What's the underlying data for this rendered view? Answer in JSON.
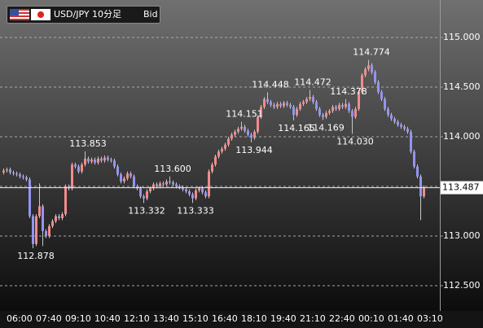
{
  "chart_data": {
    "type": "candlestick",
    "title": "USD/JPY 10分足",
    "price_type": "Bid",
    "categories": [
      null,
      null,
      "06:00",
      null,
      null,
      null,
      null,
      null,
      null,
      null,
      null,
      "07:40",
      null,
      null,
      null,
      null,
      null,
      null,
      null,
      null,
      "09:10",
      null,
      null,
      null,
      null,
      null,
      null,
      null,
      null,
      "10:40",
      null,
      null,
      null,
      null,
      null,
      null,
      null,
      null,
      "12:10",
      null,
      null,
      null,
      null,
      null,
      null,
      null,
      null,
      "13:40",
      null,
      null,
      null,
      null,
      null,
      null,
      null,
      null,
      "15:10",
      null,
      null,
      null,
      null,
      null,
      null,
      null,
      null,
      "16:40",
      null,
      null,
      null,
      null,
      null,
      null,
      null,
      null,
      "18:10",
      null,
      null,
      null,
      null,
      null,
      null,
      null,
      null,
      "19:40",
      null,
      null,
      null,
      null,
      null,
      null,
      null,
      null,
      "21:10",
      null,
      null,
      null,
      null,
      null,
      null,
      null,
      null,
      "22:40",
      null,
      null,
      null,
      null,
      null,
      null,
      null,
      null,
      "00:10",
      null,
      null,
      null,
      null,
      null,
      null,
      null,
      null,
      "01:40",
      null,
      null,
      null,
      null,
      null,
      null,
      null,
      null,
      "03:10",
      null
    ],
    "open": [
      113.64,
      113.66,
      113.67,
      113.64,
      113.63,
      113.62,
      113.6,
      113.59,
      113.57,
      113.2,
      112.92,
      113.2,
      113.3,
      113.05,
      113.0,
      113.1,
      113.15,
      113.2,
      113.18,
      113.22,
      113.5,
      113.48,
      113.72,
      113.7,
      113.65,
      113.72,
      113.78,
      113.75,
      113.77,
      113.74,
      113.78,
      113.76,
      113.79,
      113.77,
      113.76,
      113.7,
      113.62,
      113.55,
      113.58,
      113.63,
      113.6,
      113.5,
      113.48,
      113.4,
      113.38,
      113.45,
      113.48,
      113.52,
      113.5,
      113.53,
      113.52,
      113.55,
      113.54,
      113.52,
      113.5,
      113.49,
      113.47,
      113.45,
      113.42,
      113.38,
      113.46,
      113.48,
      113.44,
      113.4,
      113.65,
      113.72,
      113.8,
      113.85,
      113.88,
      113.92,
      113.98,
      114.02,
      114.05,
      114.08,
      114.1,
      114.06,
      114.02,
      113.99,
      114.05,
      114.2,
      114.3,
      114.38,
      114.35,
      114.32,
      114.3,
      114.33,
      114.31,
      114.34,
      114.32,
      114.3,
      114.22,
      114.28,
      114.33,
      114.35,
      114.38,
      114.4,
      114.35,
      114.28,
      114.22,
      114.2,
      114.24,
      114.26,
      114.3,
      114.28,
      114.32,
      114.3,
      114.33,
      114.26,
      114.2,
      114.28,
      114.45,
      114.62,
      114.68,
      114.72,
      114.65,
      114.55,
      114.45,
      114.38,
      114.28,
      114.22,
      114.18,
      114.15,
      114.12,
      114.1,
      114.08,
      114.05,
      113.85,
      113.7,
      113.6,
      113.4
    ],
    "high": [
      113.68,
      113.69,
      113.69,
      113.66,
      113.65,
      113.64,
      113.62,
      113.61,
      113.59,
      113.22,
      113.22,
      113.53,
      113.32,
      113.07,
      113.12,
      113.17,
      113.22,
      113.22,
      113.24,
      113.52,
      113.52,
      113.74,
      113.74,
      113.72,
      113.74,
      113.853,
      113.8,
      113.79,
      113.79,
      113.8,
      113.8,
      113.81,
      113.81,
      113.79,
      113.78,
      113.72,
      113.64,
      113.6,
      113.65,
      113.65,
      113.62,
      113.52,
      113.5,
      113.42,
      113.47,
      113.5,
      113.54,
      113.54,
      113.55,
      113.55,
      113.57,
      113.6,
      113.56,
      113.54,
      113.52,
      113.51,
      113.49,
      113.47,
      113.44,
      113.48,
      113.5,
      113.5,
      113.46,
      113.67,
      113.74,
      113.82,
      113.87,
      113.9,
      113.94,
      114.0,
      114.04,
      114.07,
      114.1,
      114.151,
      114.12,
      114.08,
      114.04,
      114.07,
      114.22,
      114.32,
      114.4,
      114.448,
      114.37,
      114.34,
      114.35,
      114.35,
      114.36,
      114.36,
      114.34,
      114.32,
      114.3,
      114.35,
      114.37,
      114.4,
      114.472,
      114.42,
      114.37,
      114.3,
      114.24,
      114.26,
      114.28,
      114.32,
      114.32,
      114.34,
      114.34,
      114.378,
      114.35,
      114.28,
      114.3,
      114.47,
      114.64,
      114.7,
      114.774,
      114.74,
      114.67,
      114.57,
      114.47,
      114.4,
      114.3,
      114.24,
      114.2,
      114.17,
      114.14,
      114.12,
      114.1,
      114.07,
      113.87,
      113.72,
      113.62,
      113.51
    ],
    "low": [
      113.62,
      113.64,
      113.62,
      113.61,
      113.6,
      113.58,
      113.57,
      113.55,
      113.18,
      112.878,
      112.9,
      113.18,
      112.9,
      112.98,
      112.98,
      113.08,
      113.13,
      113.16,
      113.16,
      113.2,
      113.46,
      113.46,
      113.68,
      113.63,
      113.63,
      113.7,
      113.73,
      113.73,
      113.72,
      113.72,
      113.74,
      113.74,
      113.75,
      113.74,
      113.68,
      113.6,
      113.53,
      113.53,
      113.56,
      113.58,
      113.48,
      113.46,
      113.38,
      113.332,
      113.36,
      113.43,
      113.46,
      113.48,
      113.48,
      113.5,
      113.5,
      113.52,
      113.5,
      113.48,
      113.47,
      113.45,
      113.43,
      113.4,
      113.333,
      113.36,
      113.44,
      113.42,
      113.38,
      113.38,
      113.63,
      113.7,
      113.78,
      113.83,
      113.86,
      113.9,
      113.96,
      114.0,
      114.03,
      114.06,
      114.04,
      114.0,
      113.944,
      113.97,
      114.03,
      114.18,
      114.28,
      114.33,
      114.3,
      114.28,
      114.28,
      114.29,
      114.29,
      114.3,
      114.28,
      114.165,
      114.2,
      114.26,
      114.31,
      114.33,
      114.36,
      114.33,
      114.26,
      114.2,
      114.169,
      114.18,
      114.22,
      114.24,
      114.26,
      114.26,
      114.28,
      114.28,
      114.24,
      114.03,
      114.18,
      114.26,
      114.43,
      114.6,
      114.66,
      114.63,
      114.53,
      114.43,
      114.36,
      114.26,
      114.2,
      114.16,
      114.13,
      114.1,
      114.08,
      114.06,
      114.03,
      113.83,
      113.68,
      113.58,
      113.16,
      113.38
    ],
    "close": [
      113.66,
      113.67,
      113.64,
      113.63,
      113.62,
      113.6,
      113.59,
      113.57,
      113.2,
      112.92,
      113.2,
      113.3,
      113.05,
      113.0,
      113.1,
      113.15,
      113.2,
      113.18,
      113.22,
      113.5,
      113.48,
      113.72,
      113.7,
      113.65,
      113.72,
      113.78,
      113.75,
      113.77,
      113.74,
      113.78,
      113.76,
      113.79,
      113.77,
      113.76,
      113.7,
      113.62,
      113.55,
      113.58,
      113.63,
      113.6,
      113.5,
      113.48,
      113.4,
      113.38,
      113.45,
      113.48,
      113.52,
      113.5,
      113.53,
      113.52,
      113.55,
      113.54,
      113.52,
      113.5,
      113.49,
      113.47,
      113.45,
      113.42,
      113.38,
      113.46,
      113.48,
      113.44,
      113.4,
      113.65,
      113.72,
      113.8,
      113.85,
      113.88,
      113.92,
      113.98,
      114.02,
      114.05,
      114.08,
      114.1,
      114.06,
      114.02,
      113.99,
      114.05,
      114.2,
      114.3,
      114.38,
      114.35,
      114.32,
      114.3,
      114.33,
      114.31,
      114.34,
      114.32,
      114.3,
      114.22,
      114.28,
      114.33,
      114.35,
      114.38,
      114.4,
      114.35,
      114.28,
      114.22,
      114.2,
      114.24,
      114.26,
      114.3,
      114.28,
      114.32,
      114.3,
      114.33,
      114.26,
      114.2,
      114.28,
      114.45,
      114.62,
      114.68,
      114.72,
      114.65,
      114.55,
      114.45,
      114.38,
      114.28,
      114.22,
      114.18,
      114.15,
      114.12,
      114.1,
      114.08,
      114.05,
      113.85,
      113.7,
      113.6,
      113.4,
      113.487
    ],
    "value_labels": {
      "high": [
        null,
        null,
        null,
        null,
        null,
        null,
        null,
        null,
        null,
        null,
        null,
        null,
        null,
        null,
        null,
        null,
        null,
        null,
        null,
        null,
        null,
        null,
        null,
        null,
        null,
        "113.853",
        null,
        null,
        null,
        null,
        null,
        null,
        null,
        null,
        null,
        null,
        null,
        null,
        null,
        null,
        null,
        null,
        null,
        null,
        null,
        null,
        null,
        null,
        null,
        null,
        null,
        "113.600",
        null,
        null,
        null,
        null,
        null,
        null,
        null,
        null,
        null,
        null,
        null,
        null,
        null,
        null,
        null,
        null,
        null,
        null,
        null,
        null,
        null,
        "114.151",
        null,
        null,
        null,
        null,
        null,
        null,
        null,
        "114.448",
        null,
        null,
        null,
        null,
        null,
        null,
        null,
        null,
        null,
        null,
        null,
        null,
        "114.472",
        null,
        null,
        null,
        null,
        null,
        null,
        null,
        null,
        null,
        null,
        "114.378",
        null,
        null,
        null,
        null,
        null,
        null,
        "114.774",
        null,
        null,
        null,
        null,
        null,
        null,
        null,
        null,
        null,
        null,
        null,
        null,
        null,
        null,
        null,
        null,
        null
      ],
      "low": [
        null,
        null,
        null,
        null,
        null,
        null,
        null,
        null,
        null,
        "112.878",
        null,
        null,
        null,
        null,
        null,
        null,
        null,
        null,
        null,
        null,
        null,
        null,
        null,
        null,
        null,
        null,
        null,
        null,
        null,
        null,
        null,
        null,
        null,
        null,
        null,
        null,
        null,
        null,
        null,
        null,
        null,
        null,
        null,
        "113.332",
        null,
        null,
        null,
        null,
        null,
        null,
        null,
        null,
        null,
        null,
        null,
        null,
        null,
        null,
        "113.333",
        null,
        null,
        null,
        null,
        null,
        null,
        null,
        null,
        null,
        null,
        null,
        null,
        null,
        null,
        null,
        null,
        null,
        "113.944",
        null,
        null,
        null,
        null,
        null,
        null,
        null,
        null,
        null,
        null,
        null,
        null,
        "114.165",
        null,
        null,
        null,
        null,
        null,
        null,
        null,
        null,
        "114.169",
        null,
        null,
        null,
        null,
        null,
        null,
        null,
        null,
        "114.030",
        null,
        null,
        null,
        null,
        null,
        null,
        null,
        null,
        null,
        null,
        null,
        null,
        null,
        null,
        null,
        null,
        null,
        null,
        null,
        null,
        null,
        null
      ]
    },
    "ylim": [
      112.246,
      115.377
    ],
    "yticks": [
      {
        "value": 112.5,
        "label": "112.500"
      },
      {
        "value": 113,
        "label": "113.000"
      },
      {
        "value": 113.5,
        "label": "113.500"
      },
      {
        "value": 114,
        "label": "114.000"
      },
      {
        "value": 114.5,
        "label": "114.500"
      },
      {
        "value": 115,
        "label": "115.000"
      }
    ],
    "grid": true,
    "up_color": "#f28b8b",
    "down_color": "#9494f2",
    "wick_color": "#c8c8c8"
  }
}
